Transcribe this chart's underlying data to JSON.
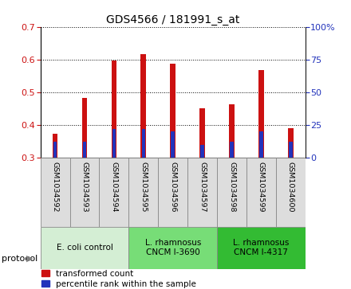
{
  "title": "GDS4566 / 181991_s_at",
  "samples": [
    "GSM1034592",
    "GSM1034593",
    "GSM1034594",
    "GSM1034595",
    "GSM1034596",
    "GSM1034597",
    "GSM1034598",
    "GSM1034599",
    "GSM1034600"
  ],
  "transformed_count": [
    0.373,
    0.484,
    0.598,
    0.618,
    0.588,
    0.451,
    0.463,
    0.568,
    0.389
  ],
  "percentile_rank": [
    12,
    12,
    22,
    22,
    20,
    10,
    12,
    20,
    12
  ],
  "bar_bottom": 0.3,
  "ylim_left": [
    0.3,
    0.7
  ],
  "ylim_right": [
    0,
    100
  ],
  "yticks_left": [
    0.3,
    0.4,
    0.5,
    0.6,
    0.7
  ],
  "yticks_right": [
    0,
    25,
    50,
    75,
    100
  ],
  "bar_color_red": "#cc1111",
  "bar_color_blue": "#2233bb",
  "bar_width": 0.18,
  "blue_bar_width": 0.12,
  "group_colors": [
    "#d4eed4",
    "#77dd77",
    "#33bb33"
  ],
  "group_labels": [
    "E. coli control",
    "L. rhamnosus\nCNCM I-3690",
    "L. rhamnosus\nCNCM I-4317"
  ],
  "group_starts": [
    0,
    3,
    6
  ],
  "group_ends": [
    3,
    6,
    9
  ],
  "sample_box_color": "#dddddd",
  "legend_labels": [
    "transformed count",
    "percentile rank within the sample"
  ],
  "left_tick_color": "#cc1111",
  "right_tick_color": "#2233bb",
  "protocol_label": "protocol"
}
